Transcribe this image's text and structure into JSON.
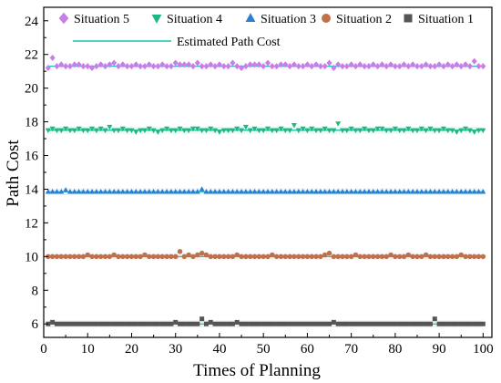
{
  "chart_data": {
    "type": "scatter",
    "xlabel": "Times of Planning",
    "ylabel": "Path Cost",
    "xlim": [
      0,
      102
    ],
    "ylim": [
      5.2,
      24.8
    ],
    "xticks": [
      0,
      10,
      20,
      30,
      40,
      50,
      60,
      70,
      80,
      90,
      100
    ],
    "yticks": [
      6,
      8,
      10,
      12,
      14,
      16,
      18,
      20,
      22,
      24
    ],
    "grid": false,
    "legend_placement": "top",
    "x": [
      1,
      2,
      3,
      4,
      5,
      6,
      7,
      8,
      9,
      10,
      11,
      12,
      13,
      14,
      15,
      16,
      17,
      18,
      19,
      20,
      21,
      22,
      23,
      24,
      25,
      26,
      27,
      28,
      29,
      30,
      31,
      32,
      33,
      34,
      35,
      36,
      37,
      38,
      39,
      40,
      41,
      42,
      43,
      44,
      45,
      46,
      47,
      48,
      49,
      50,
      51,
      52,
      53,
      54,
      55,
      56,
      57,
      58,
      59,
      60,
      61,
      62,
      63,
      64,
      65,
      66,
      67,
      68,
      69,
      70,
      71,
      72,
      73,
      74,
      75,
      76,
      77,
      78,
      79,
      80,
      81,
      82,
      83,
      84,
      85,
      86,
      87,
      88,
      89,
      90,
      91,
      92,
      93,
      94,
      95,
      96,
      97,
      98,
      99,
      100
    ],
    "series": [
      {
        "name": "Situation 5",
        "marker": "diamond",
        "color": "#c77ee6",
        "values": [
          21.2,
          21.8,
          21.3,
          21.4,
          21.3,
          21.3,
          21.4,
          21.4,
          21.3,
          21.3,
          21.2,
          21.3,
          21.4,
          21.3,
          21.4,
          21.5,
          21.3,
          21.4,
          21.3,
          21.3,
          21.4,
          21.3,
          21.3,
          21.4,
          21.3,
          21.3,
          21.4,
          21.3,
          21.3,
          21.5,
          21.4,
          21.4,
          21.4,
          21.3,
          21.5,
          21.3,
          21.3,
          21.4,
          21.3,
          21.4,
          21.3,
          21.3,
          21.5,
          21.3,
          21.2,
          21.3,
          21.4,
          21.4,
          21.4,
          21.3,
          21.5,
          21.3,
          21.3,
          21.4,
          21.4,
          21.3,
          21.4,
          21.3,
          21.3,
          21.4,
          21.3,
          21.4,
          21.3,
          21.3,
          21.5,
          21.2,
          21.4,
          21.3,
          21.3,
          21.4,
          21.3,
          21.4,
          21.3,
          21.3,
          21.4,
          21.3,
          21.4,
          21.3,
          21.4,
          21.3,
          21.3,
          21.4,
          21.3,
          21.4,
          21.3,
          21.3,
          21.4,
          21.3,
          21.3,
          21.4,
          21.3,
          21.4,
          21.3,
          21.4,
          21.3,
          21.4,
          21.3,
          21.6,
          21.3,
          21.3
        ]
      },
      {
        "name": "Situation 4",
        "marker": "triangle-down",
        "color": "#1fb87f",
        "values": [
          17.5,
          17.6,
          17.5,
          17.5,
          17.6,
          17.5,
          17.5,
          17.6,
          17.5,
          17.5,
          17.6,
          17.5,
          17.6,
          17.5,
          17.7,
          17.5,
          17.5,
          17.6,
          17.5,
          17.5,
          17.4,
          17.5,
          17.5,
          17.6,
          17.5,
          17.4,
          17.5,
          17.6,
          17.5,
          17.5,
          17.6,
          17.5,
          17.5,
          17.6,
          17.6,
          17.5,
          17.5,
          17.6,
          17.5,
          17.4,
          17.5,
          17.5,
          17.5,
          17.6,
          17.5,
          17.7,
          17.5,
          17.6,
          17.5,
          17.5,
          17.6,
          17.5,
          17.5,
          17.6,
          17.5,
          17.5,
          17.8,
          17.5,
          17.6,
          17.5,
          17.6,
          17.5,
          17.5,
          17.6,
          17.5,
          17.5,
          17.9,
          17.5,
          17.5,
          17.6,
          17.5,
          17.5,
          17.6,
          17.5,
          17.5,
          17.6,
          17.6,
          17.5,
          17.5,
          17.6,
          17.5,
          17.5,
          17.6,
          17.5,
          17.5,
          17.6,
          17.5,
          17.6,
          17.5,
          17.5,
          17.6,
          17.5,
          17.5,
          17.4,
          17.5,
          17.6,
          17.5,
          17.4,
          17.5,
          17.5
        ]
      },
      {
        "name": "Situation 3",
        "marker": "triangle-up",
        "color": "#2a7fd4",
        "values": [
          13.85,
          13.85,
          13.85,
          13.85,
          13.95,
          13.85,
          13.85,
          13.85,
          13.85,
          13.85,
          13.85,
          13.85,
          13.85,
          13.85,
          13.85,
          13.85,
          13.85,
          13.85,
          13.85,
          13.85,
          13.85,
          13.85,
          13.85,
          13.85,
          13.85,
          13.85,
          13.85,
          13.85,
          13.85,
          13.85,
          13.85,
          13.85,
          13.85,
          13.85,
          13.85,
          14.0,
          13.85,
          13.85,
          13.85,
          13.85,
          13.85,
          13.85,
          13.85,
          13.85,
          13.85,
          13.85,
          13.85,
          13.85,
          13.85,
          13.85,
          13.85,
          13.85,
          13.85,
          13.85,
          13.85,
          13.85,
          13.85,
          13.85,
          13.85,
          13.85,
          13.85,
          13.85,
          13.85,
          13.85,
          13.85,
          13.85,
          13.85,
          13.85,
          13.85,
          13.85,
          13.85,
          13.85,
          13.85,
          13.85,
          13.85,
          13.85,
          13.85,
          13.85,
          13.85,
          13.85,
          13.85,
          13.85,
          13.85,
          13.85,
          13.85,
          13.85,
          13.85,
          13.85,
          13.85,
          13.85,
          13.85,
          13.85,
          13.85,
          13.85,
          13.85,
          13.85,
          13.85,
          13.85,
          13.85,
          13.85
        ]
      },
      {
        "name": "Situation 2",
        "marker": "circle",
        "color": "#c0704a",
        "values": [
          10.0,
          10.0,
          10.0,
          10.0,
          10.0,
          10.0,
          10.0,
          10.0,
          10.0,
          10.1,
          10.0,
          10.0,
          10.0,
          10.0,
          10.0,
          10.1,
          10.0,
          10.0,
          10.0,
          10.0,
          10.0,
          10.0,
          10.1,
          10.0,
          10.0,
          10.0,
          10.0,
          10.0,
          10.0,
          10.0,
          10.3,
          10.0,
          10.1,
          10.0,
          10.1,
          10.2,
          10.1,
          10.0,
          10.0,
          10.0,
          10.0,
          10.0,
          10.0,
          10.1,
          10.0,
          10.0,
          10.0,
          10.0,
          10.0,
          10.0,
          10.0,
          10.1,
          10.0,
          10.0,
          10.0,
          10.0,
          10.0,
          10.0,
          10.0,
          10.0,
          10.0,
          10.0,
          10.0,
          10.1,
          10.2,
          10.0,
          10.0,
          10.0,
          10.0,
          10.0,
          10.1,
          10.0,
          10.0,
          10.0,
          10.0,
          10.0,
          10.0,
          10.0,
          10.1,
          10.0,
          10.0,
          10.0,
          10.1,
          10.0,
          10.0,
          10.0,
          10.1,
          10.0,
          10.0,
          10.0,
          10.0,
          10.0,
          10.0,
          10.0,
          10.1,
          10.0,
          10.0,
          10.0,
          10.0,
          10.0
        ]
      },
      {
        "name": "Situation 1",
        "marker": "square",
        "color": "#555555",
        "values": [
          6.0,
          6.1,
          6.0,
          6.0,
          6.0,
          6.0,
          6.0,
          6.0,
          6.0,
          6.0,
          6.0,
          6.0,
          6.0,
          6.0,
          6.0,
          6.0,
          6.0,
          6.0,
          6.0,
          6.0,
          6.0,
          6.0,
          6.0,
          6.0,
          6.0,
          6.0,
          6.0,
          6.0,
          6.0,
          6.1,
          6.0,
          6.0,
          6.0,
          6.0,
          6.0,
          6.3,
          6.0,
          6.1,
          6.0,
          6.0,
          6.0,
          6.0,
          6.0,
          6.1,
          6.0,
          6.0,
          6.0,
          6.0,
          6.0,
          6.0,
          6.0,
          6.0,
          6.0,
          6.0,
          6.0,
          6.0,
          6.0,
          6.0,
          6.0,
          6.0,
          6.0,
          6.0,
          6.0,
          6.0,
          6.0,
          6.1,
          6.0,
          6.0,
          6.0,
          6.0,
          6.0,
          6.0,
          6.0,
          6.0,
          6.0,
          6.0,
          6.0,
          6.0,
          6.0,
          6.0,
          6.0,
          6.0,
          6.0,
          6.0,
          6.0,
          6.0,
          6.0,
          6.0,
          6.3,
          6.0,
          6.0,
          6.0,
          6.0,
          6.0,
          6.0,
          6.0,
          6.0,
          6.0,
          6.0,
          6.0
        ]
      }
    ],
    "reference_lines": {
      "name": "Estimated Path Cost",
      "color": "#19c4b4",
      "values": [
        21.3,
        17.5,
        13.85,
        10.0,
        6.0
      ]
    }
  }
}
